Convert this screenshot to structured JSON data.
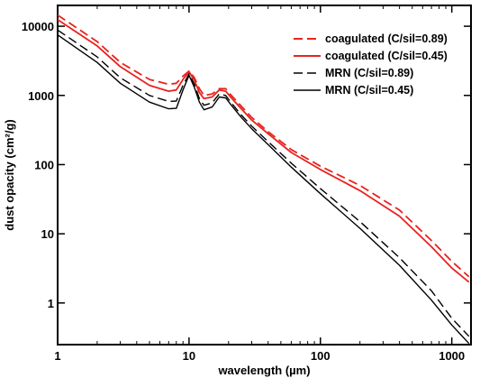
{
  "chart_data": {
    "type": "line",
    "xlabel": "wavelength (µm)",
    "ylabel": "dust opacity (cm²/g)",
    "xscale": "log",
    "yscale": "log",
    "xlim": [
      1,
      1400
    ],
    "ylim": [
      0.25,
      20000
    ],
    "xticks": [
      {
        "value": 1,
        "label": "1"
      },
      {
        "value": 10,
        "label": "10"
      },
      {
        "value": 100,
        "label": "100"
      },
      {
        "value": 1000,
        "label": "1000"
      }
    ],
    "yticks": [
      {
        "value": 1,
        "label": "1"
      },
      {
        "value": 10,
        "label": "10"
      },
      {
        "value": 100,
        "label": "100"
      },
      {
        "value": 1000,
        "label": "1000"
      },
      {
        "value": 10000,
        "label": "10000"
      }
    ],
    "legend": {
      "placement": "top-right"
    },
    "series": [
      {
        "name": "coagulated (C/sil=0.89)",
        "color": "#e8231e",
        "dash": "dashed",
        "points": [
          [
            1,
            14500
          ],
          [
            2,
            6000
          ],
          [
            3,
            3000
          ],
          [
            5,
            1700
          ],
          [
            7,
            1450
          ],
          [
            8,
            1500
          ],
          [
            9,
            1900
          ],
          [
            10,
            2250
          ],
          [
            11,
            1800
          ],
          [
            12,
            1250
          ],
          [
            13,
            1000
          ],
          [
            15,
            1050
          ],
          [
            17,
            1250
          ],
          [
            19,
            1250
          ],
          [
            21,
            1000
          ],
          [
            25,
            700
          ],
          [
            30,
            480
          ],
          [
            40,
            300
          ],
          [
            60,
            165
          ],
          [
            100,
            95
          ],
          [
            200,
            50
          ],
          [
            400,
            22
          ],
          [
            700,
            8
          ],
          [
            1000,
            4
          ],
          [
            1350,
            2.4
          ]
        ]
      },
      {
        "name": "coagulated (C/sil=0.45)",
        "color": "#e8231e",
        "dash": "solid",
        "points": [
          [
            1,
            12500
          ],
          [
            2,
            5200
          ],
          [
            3,
            2600
          ],
          [
            5,
            1400
          ],
          [
            7,
            1150
          ],
          [
            8,
            1200
          ],
          [
            9,
            1700
          ],
          [
            10,
            2200
          ],
          [
            11,
            1650
          ],
          [
            12,
            1100
          ],
          [
            13,
            900
          ],
          [
            15,
            950
          ],
          [
            17,
            1200
          ],
          [
            19,
            1150
          ],
          [
            21,
            920
          ],
          [
            25,
            640
          ],
          [
            30,
            440
          ],
          [
            40,
            280
          ],
          [
            60,
            150
          ],
          [
            100,
            85
          ],
          [
            200,
            42
          ],
          [
            400,
            18
          ],
          [
            700,
            6.5
          ],
          [
            1000,
            3.2
          ],
          [
            1350,
            2.0
          ]
        ]
      },
      {
        "name": "MRN (C/sil=0.89)",
        "color": "#000000",
        "dash": "dashed",
        "points": [
          [
            1,
            8800
          ],
          [
            2,
            3600
          ],
          [
            3,
            1800
          ],
          [
            5,
            1000
          ],
          [
            7,
            820
          ],
          [
            8,
            830
          ],
          [
            9,
            1400
          ],
          [
            10,
            2050
          ],
          [
            11,
            1450
          ],
          [
            12,
            900
          ],
          [
            13,
            720
          ],
          [
            15,
            780
          ],
          [
            17,
            1050
          ],
          [
            19,
            1000
          ],
          [
            21,
            780
          ],
          [
            25,
            520
          ],
          [
            30,
            360
          ],
          [
            40,
            215
          ],
          [
            60,
            105
          ],
          [
            100,
            45
          ],
          [
            200,
            15
          ],
          [
            400,
            4.5
          ],
          [
            700,
            1.5
          ],
          [
            1000,
            0.6
          ],
          [
            1350,
            0.33
          ]
        ]
      },
      {
        "name": "MRN (C/sil=0.45)",
        "color": "#000000",
        "dash": "solid",
        "points": [
          [
            1,
            7500
          ],
          [
            2,
            3000
          ],
          [
            3,
            1500
          ],
          [
            5,
            800
          ],
          [
            7,
            640
          ],
          [
            8,
            650
          ],
          [
            9,
            1200
          ],
          [
            10,
            1950
          ],
          [
            11,
            1300
          ],
          [
            12,
            800
          ],
          [
            13,
            620
          ],
          [
            15,
            680
          ],
          [
            17,
            950
          ],
          [
            19,
            920
          ],
          [
            21,
            720
          ],
          [
            25,
            480
          ],
          [
            30,
            330
          ],
          [
            40,
            195
          ],
          [
            60,
            92
          ],
          [
            100,
            38
          ],
          [
            200,
            12
          ],
          [
            400,
            3.5
          ],
          [
            700,
            1.1
          ],
          [
            1000,
            0.48
          ],
          [
            1350,
            0.26
          ]
        ]
      }
    ]
  }
}
